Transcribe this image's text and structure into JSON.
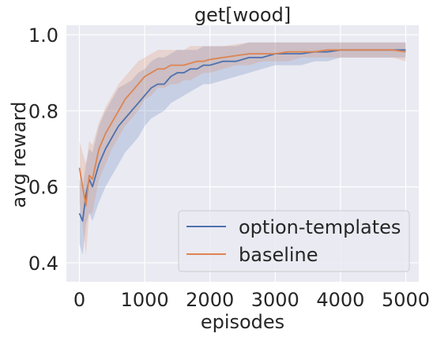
{
  "chart_data": {
    "type": "line",
    "title": "get[wood]",
    "xlabel": "episodes",
    "ylabel": "avg reward",
    "xlim": [
      -200,
      5200
    ],
    "ylim": [
      0.35,
      1.025
    ],
    "xticks": [
      0,
      1000,
      2000,
      3000,
      4000,
      5000
    ],
    "yticks": [
      0.4,
      0.6,
      0.8,
      1.0
    ],
    "xtick_labels": [
      "0",
      "1000",
      "2000",
      "3000",
      "4000",
      "5000"
    ],
    "ytick_labels": [
      "0.4",
      "0.6",
      "0.8",
      "1.0"
    ],
    "grid": true,
    "legend_position": "lower-right",
    "colors": {
      "background": "#eaeaf2",
      "grid": "#ffffff"
    },
    "series": [
      {
        "name": "option-templates",
        "color": "#4c72b0",
        "x": [
          0,
          50,
          100,
          150,
          200,
          300,
          400,
          500,
          600,
          700,
          800,
          900,
          1000,
          1100,
          1200,
          1300,
          1400,
          1500,
          1600,
          1700,
          1800,
          1900,
          2000,
          2200,
          2400,
          2600,
          2800,
          3000,
          3200,
          3400,
          3600,
          3800,
          4000,
          4200,
          4400,
          4600,
          4800,
          5000
        ],
        "y": [
          0.53,
          0.51,
          0.58,
          0.62,
          0.6,
          0.66,
          0.7,
          0.73,
          0.76,
          0.78,
          0.8,
          0.82,
          0.84,
          0.86,
          0.87,
          0.87,
          0.89,
          0.9,
          0.9,
          0.91,
          0.91,
          0.92,
          0.92,
          0.93,
          0.93,
          0.94,
          0.94,
          0.95,
          0.95,
          0.95,
          0.955,
          0.955,
          0.96,
          0.96,
          0.96,
          0.96,
          0.96,
          0.96
        ],
        "lower": [
          0.45,
          0.42,
          0.5,
          0.53,
          0.51,
          0.56,
          0.6,
          0.63,
          0.66,
          0.69,
          0.71,
          0.73,
          0.76,
          0.78,
          0.79,
          0.8,
          0.82,
          0.83,
          0.84,
          0.85,
          0.86,
          0.87,
          0.87,
          0.88,
          0.89,
          0.9,
          0.91,
          0.92,
          0.92,
          0.92,
          0.93,
          0.93,
          0.94,
          0.94,
          0.94,
          0.94,
          0.94,
          0.94
        ],
        "upper": [
          0.62,
          0.6,
          0.66,
          0.7,
          0.69,
          0.76,
          0.8,
          0.83,
          0.86,
          0.87,
          0.88,
          0.9,
          0.91,
          0.93,
          0.94,
          0.94,
          0.95,
          0.96,
          0.96,
          0.96,
          0.96,
          0.97,
          0.97,
          0.97,
          0.97,
          0.98,
          0.98,
          0.98,
          0.98,
          0.98,
          0.98,
          0.98,
          0.98,
          0.98,
          0.98,
          0.98,
          0.98,
          0.98
        ]
      },
      {
        "name": "baseline",
        "color": "#dd8452",
        "x": [
          0,
          50,
          100,
          150,
          200,
          300,
          400,
          500,
          600,
          700,
          800,
          900,
          1000,
          1100,
          1200,
          1300,
          1400,
          1500,
          1600,
          1700,
          1800,
          1900,
          2000,
          2200,
          2400,
          2600,
          2800,
          3000,
          3200,
          3400,
          3600,
          3800,
          4000,
          4200,
          4400,
          4600,
          4800,
          5000
        ],
        "y": [
          0.65,
          0.6,
          0.55,
          0.63,
          0.62,
          0.7,
          0.74,
          0.77,
          0.8,
          0.83,
          0.85,
          0.87,
          0.89,
          0.9,
          0.91,
          0.91,
          0.92,
          0.92,
          0.92,
          0.925,
          0.93,
          0.93,
          0.935,
          0.94,
          0.945,
          0.95,
          0.95,
          0.95,
          0.955,
          0.955,
          0.955,
          0.96,
          0.96,
          0.96,
          0.96,
          0.96,
          0.96,
          0.955
        ],
        "lower": [
          0.56,
          0.5,
          0.42,
          0.53,
          0.53,
          0.62,
          0.66,
          0.7,
          0.73,
          0.76,
          0.78,
          0.8,
          0.83,
          0.84,
          0.86,
          0.86,
          0.87,
          0.87,
          0.88,
          0.88,
          0.89,
          0.9,
          0.9,
          0.91,
          0.92,
          0.92,
          0.93,
          0.93,
          0.93,
          0.94,
          0.94,
          0.94,
          0.94,
          0.94,
          0.94,
          0.94,
          0.94,
          0.93
        ],
        "upper": [
          0.72,
          0.69,
          0.66,
          0.72,
          0.71,
          0.77,
          0.81,
          0.84,
          0.87,
          0.89,
          0.91,
          0.93,
          0.94,
          0.95,
          0.96,
          0.96,
          0.96,
          0.96,
          0.96,
          0.97,
          0.97,
          0.97,
          0.97,
          0.97,
          0.975,
          0.98,
          0.98,
          0.98,
          0.98,
          0.98,
          0.98,
          0.98,
          0.98,
          0.98,
          0.98,
          0.98,
          0.98,
          0.98
        ]
      }
    ]
  }
}
